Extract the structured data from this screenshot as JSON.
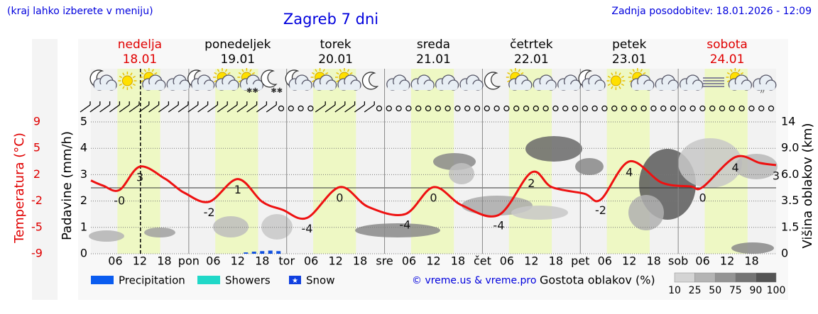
{
  "chart_data": {
    "type": "meteogram",
    "header_left": "(kraj lahko izberete v meniju)",
    "title": "Zagreb 7 dni",
    "updated": "Zadnja posodobitev: 18.01.2026 - 12:09",
    "days": [
      {
        "name": "nedelja",
        "date": "18.01",
        "color": "#e00000"
      },
      {
        "name": "ponedeljek",
        "date": "19.01",
        "color": "#000000"
      },
      {
        "name": "torek",
        "date": "20.01",
        "color": "#000000"
      },
      {
        "name": "sreda",
        "date": "21.01",
        "color": "#000000"
      },
      {
        "name": "četrtek",
        "date": "22.01",
        "color": "#000000"
      },
      {
        "name": "petek",
        "date": "23.01",
        "color": "#000000"
      },
      {
        "name": "sobota",
        "date": "24.01",
        "color": "#e00000"
      }
    ],
    "xlim": [
      0,
      168
    ],
    "xticks": [
      {
        "value": 6,
        "label": "06"
      },
      {
        "value": 12,
        "label": "12"
      },
      {
        "value": 18,
        "label": "18"
      },
      {
        "value": 24,
        "label": "pon"
      },
      {
        "value": 30,
        "label": "06"
      },
      {
        "value": 36,
        "label": "12"
      },
      {
        "value": 42,
        "label": "18"
      },
      {
        "value": 48,
        "label": "tor"
      },
      {
        "value": 54,
        "label": "06"
      },
      {
        "value": 60,
        "label": "12"
      },
      {
        "value": 66,
        "label": "18"
      },
      {
        "value": 72,
        "label": "sre"
      },
      {
        "value": 78,
        "label": "06"
      },
      {
        "value": 84,
        "label": "12"
      },
      {
        "value": 90,
        "label": "18"
      },
      {
        "value": 96,
        "label": "čet"
      },
      {
        "value": 102,
        "label": "06"
      },
      {
        "value": 108,
        "label": "12"
      },
      {
        "value": 114,
        "label": "18"
      },
      {
        "value": 120,
        "label": "pet"
      },
      {
        "value": 126,
        "label": "06"
      },
      {
        "value": 132,
        "label": "12"
      },
      {
        "value": 138,
        "label": "18"
      },
      {
        "value": 144,
        "label": "sob"
      },
      {
        "value": 150,
        "label": "06"
      },
      {
        "value": 156,
        "label": "12"
      },
      {
        "value": 162,
        "label": "18"
      }
    ],
    "daylight": [
      6.5,
      17
    ],
    "now": 12.15,
    "precip_axis": {
      "label": "Padavine (mm/h)",
      "lim": [
        0,
        5
      ],
      "ticks": [
        0,
        1,
        2,
        3,
        4,
        5
      ]
    },
    "temp_axis": {
      "label": "Temperatura (°C)",
      "color": "#e00000",
      "lim": [
        -9,
        9
      ],
      "ticks": [
        {
          "value": -9,
          "label": "-9"
        },
        {
          "value": -5.4,
          "label": "-5"
        },
        {
          "value": -1.8,
          "label": "-2"
        },
        {
          "value": 1.8,
          "label": "2"
        },
        {
          "value": 5.4,
          "label": "5"
        },
        {
          "value": 9,
          "label": "9"
        }
      ]
    },
    "cloud_axis": {
      "label": "Višina oblakov (km)",
      "ticks": [
        0,
        1.5,
        3.5,
        {
          "value": 6,
          "label": "6.0"
        },
        {
          "value": 9,
          "label": "9.0"
        },
        14
      ]
    },
    "temperature": {
      "color": "#ee1111",
      "x": [
        0,
        3,
        7,
        12,
        18,
        20,
        23,
        29,
        36,
        42,
        47,
        53,
        61,
        68,
        77,
        84,
        91,
        100,
        108,
        113,
        121,
        125,
        132,
        140,
        147,
        150,
        158,
        164,
        168
      ],
      "values": [
        1.0,
        0.3,
        -0.3,
        2.9,
        1.3,
        0.5,
        -0.7,
        -1.9,
        1.2,
        -1.9,
        -3.0,
        -4.1,
        0.1,
        -2.6,
        -3.6,
        0.1,
        -2.4,
        -3.7,
        2.1,
        0.1,
        -0.8,
        -1.6,
        3.6,
        0.7,
        0.2,
        0.1,
        4.2,
        3.4,
        3.1
      ],
      "value_labels": [
        null,
        null,
        "-0",
        "3",
        null,
        null,
        null,
        "-2",
        "1",
        null,
        null,
        "-4",
        "0",
        null,
        "-4",
        "0",
        null,
        "-4",
        "2",
        null,
        null,
        "-2",
        "4",
        null,
        null,
        "0",
        "4",
        null,
        "3"
      ]
    },
    "precipitation": {
      "color": "#1050e0",
      "x": [
        38,
        40,
        42,
        44,
        46
      ],
      "values": [
        0.05,
        0.08,
        0.1,
        0.12,
        0.1
      ]
    },
    "legend": [
      {
        "label": "Precipitation",
        "color": "#0a5cf0"
      },
      {
        "label": "Showers",
        "color": "#20d8c8"
      },
      {
        "label": "Snow",
        "color": "#1040e0"
      }
    ],
    "copyright": "© vreme.us & vreme.pro",
    "cloud_density": {
      "label": "Gostota oblakov (%)",
      "ticks": [
        10,
        25,
        50,
        75,
        90,
        100
      ],
      "colors": [
        "#d4d4d4",
        "#b4b4b4",
        "#949494",
        "#747474",
        "#545454"
      ]
    }
  }
}
